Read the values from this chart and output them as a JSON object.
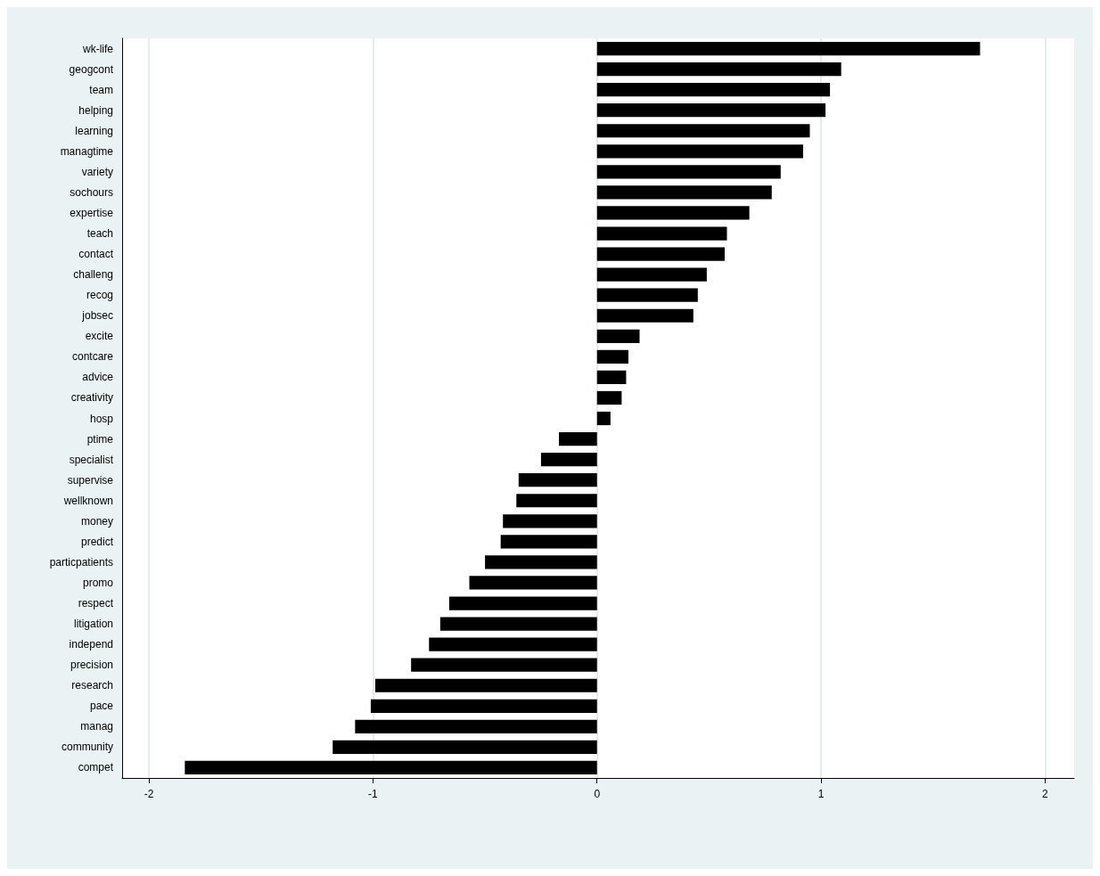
{
  "chart_data": {
    "type": "bar",
    "orientation": "horizontal",
    "color": "#000000",
    "grid": "x",
    "categories": [
      "wk-life",
      "geogcont",
      "team",
      "helping",
      "learning",
      "managtime",
      "variety",
      "sochours",
      "expertise",
      "teach",
      "contact",
      "challeng",
      "recog",
      "jobsec",
      "excite",
      "contcare",
      "advice",
      "creativity",
      "hosp",
      "ptime",
      "specialist",
      "supervise",
      "wellknown",
      "money",
      "predict",
      "particpatients",
      "promo",
      "respect",
      "litigation",
      "independ",
      "precision",
      "research",
      "pace",
      "manag",
      "community",
      "compet"
    ],
    "values": [
      1.71,
      1.09,
      1.04,
      1.02,
      0.95,
      0.92,
      0.82,
      0.78,
      0.68,
      0.58,
      0.57,
      0.49,
      0.45,
      0.43,
      0.19,
      0.14,
      0.13,
      0.11,
      0.06,
      -0.17,
      -0.25,
      -0.35,
      -0.36,
      -0.42,
      -0.43,
      -0.5,
      -0.57,
      -0.66,
      -0.7,
      -0.75,
      -0.83,
      -0.99,
      -1.01,
      -1.08,
      -1.18,
      -1.84
    ],
    "xlim": [
      -2.12,
      2.13
    ],
    "xticks": [
      -2,
      -1,
      0,
      1,
      2
    ]
  }
}
